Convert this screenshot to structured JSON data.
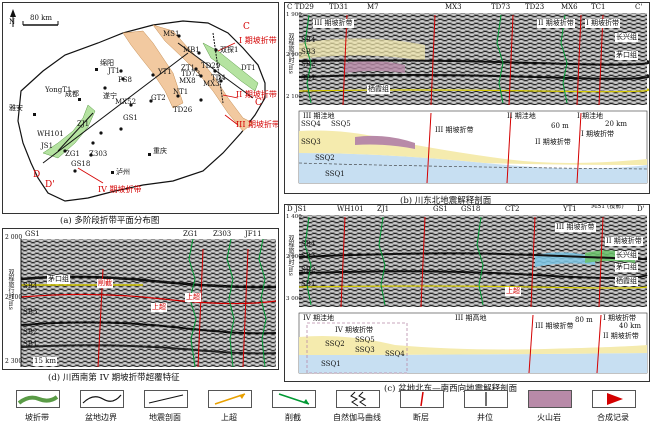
{
  "panel_a": {
    "caption": "(a) 多阶段折带平面分布图",
    "scale_label": "80 km",
    "north": "N",
    "belts": [
      "I 期坡折带",
      "II 期坡折带",
      "III 期坡折带",
      "IV 期坡折带"
    ],
    "places": [
      "绵阳",
      "成都",
      "雅安",
      "重庆",
      "泸州"
    ],
    "wells": [
      "MS1",
      "MB1",
      "双探1",
      "JT1",
      "ZT1",
      "TD29",
      "YT1",
      "MX8",
      "TD4",
      "TD73",
      "MX3",
      "DT1",
      "GT2",
      "PS8",
      "遂宁",
      "MX52",
      "GS1",
      "TD26",
      "WH101",
      "ZJ1",
      "Z303",
      "ZG1",
      "JS1",
      "GS18",
      "YongT1",
      "NT1"
    ],
    "section_letters": [
      "A",
      "A'",
      "B",
      "B'",
      "C",
      "C'",
      "D",
      "D'"
    ]
  },
  "panel_b": {
    "caption": "(b) 川东北地震解释剖面",
    "top_wells": [
      "C TD29",
      "TD31",
      "M7",
      "MX3",
      "TD73",
      "TD23",
      "MX6",
      "TC1",
      "C'"
    ],
    "axis_label": "双程旅行时/ms",
    "axis_ticks": [
      "1 900",
      "2 000",
      "2 100"
    ],
    "annotations": [
      "III 期坡折带",
      "II 期坡折带",
      "I 期坡折带",
      "长兴组",
      "茅口组",
      "栖霞组",
      "SB4",
      "SB3",
      "SB2",
      "SB1"
    ],
    "lower_labels": [
      "III 期洼地",
      "II 期洼地",
      "I 期洼地",
      "III 期坡折带",
      "II 期坡折带",
      "I 期坡折带",
      "SSQ4",
      "SSQ3",
      "SSQ2",
      "SSQ1",
      "SSQ5"
    ],
    "scale_v": "60 m",
    "scale_h": "20 km"
  },
  "panel_c": {
    "caption": "(c) 盆地北东—南西向地震解释剖面",
    "top_wells": [
      "D JS1",
      "WH101",
      "ZJ1",
      "GS1",
      "GS18",
      "CT2",
      "YT1",
      "MS1 (投影)",
      "D'"
    ],
    "axis_label": "双程旅行时/ms",
    "axis_ticks": [
      "1 400",
      "2 000",
      "3 000"
    ],
    "annotations": [
      "III 期坡折带",
      "II 期坡折带",
      "长兴组",
      "茅口组",
      "栖霞组",
      "SB4",
      "SB3",
      "SB2",
      "SB1",
      "上超"
    ],
    "lower_labels": [
      "IV 期洼地",
      "III 期高地",
      "III 期坡折带",
      "II 期坡折带",
      "I 期坡折带",
      "IV 期坡折带",
      "SSQ1",
      "SSQ2",
      "SSQ3",
      "SSQ4",
      "SSQ5"
    ],
    "scale_v": "80 m",
    "scale_h": "40 km"
  },
  "panel_d": {
    "caption": "(d) 川西南第 IV 期坡折带超覆特征",
    "top_wells": [
      "GS1",
      "ZG1",
      "Z303",
      "JF11"
    ],
    "axis_label": "双程旅行时/ms",
    "axis_ticks": [
      "2 000",
      "2 100",
      "2 300"
    ],
    "annotations": [
      "茅口组",
      "削截",
      "上超",
      "上超",
      "SB4",
      "SB3",
      "SB2",
      "SB1"
    ],
    "scale_h": "15 km"
  },
  "legend": {
    "items": [
      "坡折带",
      "盆地边界",
      "地震剖面",
      "上超",
      "削截",
      "自然伽马曲线",
      "断层",
      "井位",
      "火山岩",
      "合成记录"
    ]
  },
  "colors": {
    "belt_orange": "#f2c9a0",
    "belt_green": "#b5e3a1",
    "fault_red": "#d40000",
    "volcanic": "#b88aa8",
    "ssq_blue": "#c7dff2",
    "ssq_yellow": "#f5ebae"
  }
}
